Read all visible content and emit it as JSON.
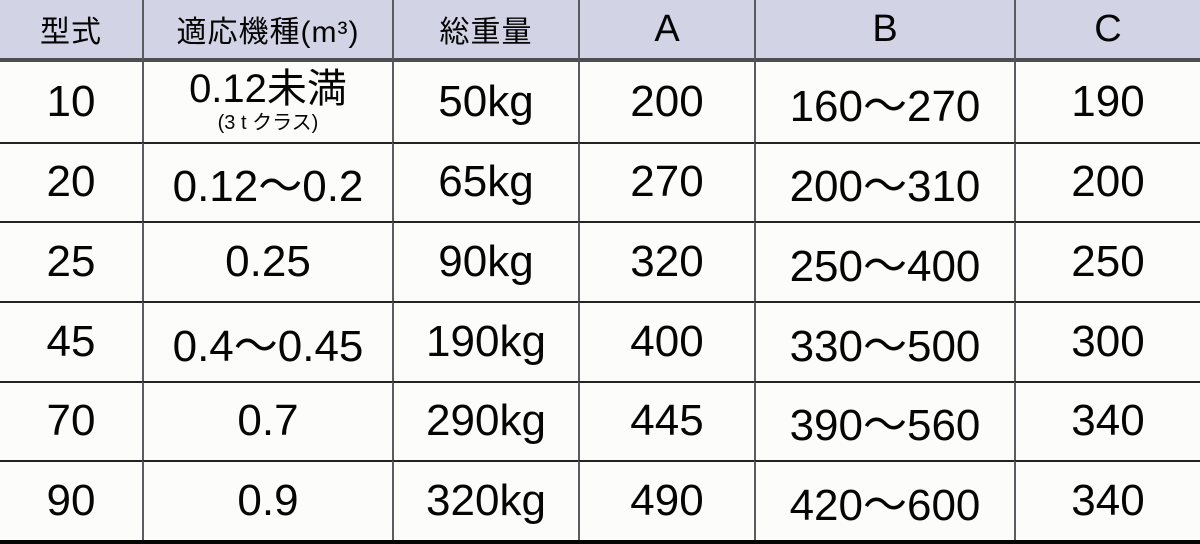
{
  "colors": {
    "header_bg": "#d2d4e6",
    "cell_bg": "#fcfcfa",
    "vertical_line": "#5c5c60",
    "row_line": "#232323",
    "header_bottom_line": "#4e4e52",
    "table_bottom_border": "#050505",
    "text": "#050505"
  },
  "table": {
    "headers": [
      "型式",
      "適応機種(m³)",
      "総重量",
      "A",
      "B",
      "C"
    ],
    "rows": [
      {
        "model": "10",
        "capacity": "0.12未満",
        "capacity_note": "(3 t クラス)",
        "weight": "50kg",
        "a": "200",
        "b": "160〜270",
        "c": "190"
      },
      {
        "model": "20",
        "capacity": "0.12〜0.2",
        "weight": "65kg",
        "a": "270",
        "b": "200〜310",
        "c": "200"
      },
      {
        "model": "25",
        "capacity": "0.25",
        "weight": "90kg",
        "a": "320",
        "b": "250〜400",
        "c": "250"
      },
      {
        "model": "45",
        "capacity": "0.4〜0.45",
        "weight": "190kg",
        "a": "400",
        "b": "330〜500",
        "c": "300"
      },
      {
        "model": "70",
        "capacity": "0.7",
        "weight": "290kg",
        "a": "445",
        "b": "390〜560",
        "c": "340"
      },
      {
        "model": "90",
        "capacity": "0.9",
        "weight": "320kg",
        "a": "490",
        "b": "420〜600",
        "c": "340"
      }
    ]
  },
  "chart_data": {
    "type": "table",
    "title": "",
    "columns": [
      "型式",
      "適応機種(m³)",
      "総重量",
      "A",
      "B",
      "C"
    ],
    "rows": [
      [
        "10",
        "0.12未満 (3 t クラス)",
        "50kg",
        "200",
        "160〜270",
        "190"
      ],
      [
        "20",
        "0.12〜0.2",
        "65kg",
        "270",
        "200〜310",
        "200"
      ],
      [
        "25",
        "0.25",
        "90kg",
        "320",
        "250〜400",
        "250"
      ],
      [
        "45",
        "0.4〜0.45",
        "190kg",
        "400",
        "330〜500",
        "300"
      ],
      [
        "70",
        "0.7",
        "290kg",
        "445",
        "390〜560",
        "340"
      ],
      [
        "90",
        "0.9",
        "320kg",
        "490",
        "420〜600",
        "340"
      ]
    ],
    "layout_hints": {
      "header_background": "#d2d4e6",
      "grid": "on",
      "thick_bottom_border": true
    }
  }
}
